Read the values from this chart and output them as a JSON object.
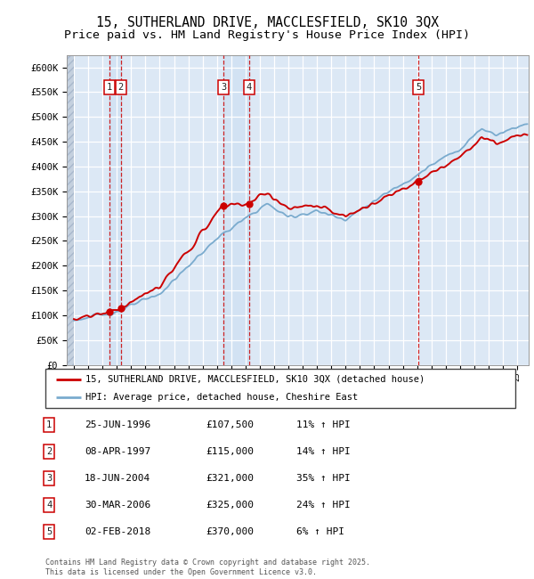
{
  "title": "15, SUTHERLAND DRIVE, MACCLESFIELD, SK10 3QX",
  "subtitle": "Price paid vs. HM Land Registry's House Price Index (HPI)",
  "ylim": [
    0,
    625000
  ],
  "yticks": [
    0,
    50000,
    100000,
    150000,
    200000,
    250000,
    300000,
    350000,
    400000,
    450000,
    500000,
    550000,
    600000
  ],
  "ytick_labels": [
    "£0",
    "£50K",
    "£100K",
    "£150K",
    "£200K",
    "£250K",
    "£300K",
    "£350K",
    "£400K",
    "£450K",
    "£500K",
    "£550K",
    "£600K"
  ],
  "xlim_start": 1993.5,
  "xlim_end": 2025.8,
  "sale_dates": [
    1996.48,
    1997.27,
    2004.46,
    2006.25,
    2018.09
  ],
  "sale_prices": [
    107500,
    115000,
    321000,
    325000,
    370000
  ],
  "sale_labels": [
    "1",
    "2",
    "3",
    "4",
    "5"
  ],
  "sale_info": [
    {
      "num": "1",
      "date": "25-JUN-1996",
      "price": "£107,500",
      "pct": "11%"
    },
    {
      "num": "2",
      "date": "08-APR-1997",
      "price": "£115,000",
      "pct": "14%"
    },
    {
      "num": "3",
      "date": "18-JUN-2004",
      "price": "£321,000",
      "pct": "35%"
    },
    {
      "num": "4",
      "date": "30-MAR-2006",
      "price": "£325,000",
      "pct": "24%"
    },
    {
      "num": "5",
      "date": "02-FEB-2018",
      "price": "£370,000",
      "pct": "6%"
    }
  ],
  "red_line_color": "#cc0000",
  "blue_line_color": "#7aabce",
  "hpi_label": "HPI: Average price, detached house, Cheshire East",
  "property_label": "15, SUTHERLAND DRIVE, MACCLESFIELD, SK10 3QX (detached house)",
  "background_color": "#dce8f5",
  "footer": "Contains HM Land Registry data © Crown copyright and database right 2025.\nThis data is licensed under the Open Government Licence v3.0.",
  "title_fontsize": 10.5,
  "subtitle_fontsize": 9.5
}
